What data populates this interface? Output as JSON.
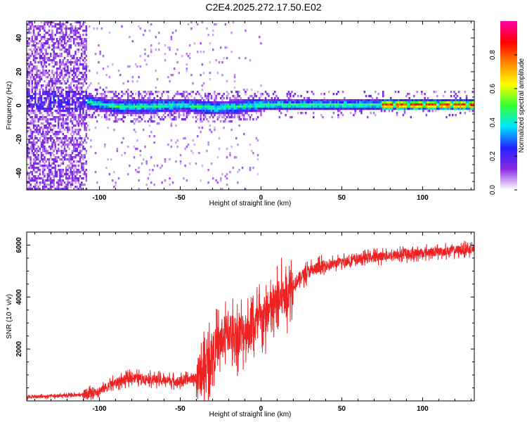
{
  "title": "C2E4.2025.272.17.50.E02",
  "chart_data": [
    {
      "type": "heatmap",
      "xlabel": "Height of straight line (km)",
      "ylabel": "Frequency (Hz)",
      "xlim": [
        -145,
        132
      ],
      "ylim": [
        -50,
        50
      ],
      "x_ticks": [
        -100,
        -50,
        0,
        50,
        100
      ],
      "x_tick_labels": [
        "-100",
        "-50",
        "0",
        "50",
        "100"
      ],
      "y_ticks": [
        -40,
        -20,
        0,
        20,
        40
      ],
      "y_tick_labels": [
        "-40",
        "-20",
        "0",
        "20",
        "40"
      ],
      "colorbar": {
        "label": "Normalized spectral amplitude",
        "range": [
          0,
          1
        ],
        "ticks": [
          0.0,
          0.2,
          0.4,
          0.6,
          0.8
        ],
        "tick_labels": [
          "0.0",
          "0.2",
          "0.4",
          "0.6",
          "0.8"
        ],
        "colors": [
          "#ffffff",
          "#8a2be2",
          "#2222ff",
          "#00e5ff",
          "#33ff33",
          "#ffff00",
          "#ff8800",
          "#ff0000",
          "#ff00aa"
        ]
      },
      "band_center_hz": [
        {
          "x": -110,
          "f": 3
        },
        {
          "x": -90,
          "f": 0
        },
        {
          "x": -70,
          "f": 0
        },
        {
          "x": -50,
          "f": 1
        },
        {
          "x": -30,
          "f": -1
        },
        {
          "x": -15,
          "f": 0
        },
        {
          "x": 0,
          "f": 1
        },
        {
          "x": 50,
          "f": 1
        },
        {
          "x": 100,
          "f": 1
        },
        {
          "x": 130,
          "f": 1
        }
      ]
    },
    {
      "type": "line",
      "xlabel": "Height of straight line (km)",
      "ylabel": "SNR (10 * v/v)",
      "xlim": [
        -145,
        132
      ],
      "ylim": [
        0,
        6500
      ],
      "x_ticks": [
        -100,
        -50,
        0,
        50,
        100
      ],
      "x_tick_labels": [
        "-100",
        "-50",
        "0",
        "50",
        "100"
      ],
      "y_ticks": [
        2000,
        4000,
        6000
      ],
      "y_tick_labels": [
        "2000",
        "4000",
        "6000"
      ],
      "color": "#ee2222",
      "series": [
        {
          "x": [
            -145,
            -120,
            -110,
            -100,
            -90,
            -80,
            -70,
            -60,
            -50,
            -40,
            -35,
            -30,
            -25,
            -20,
            -15,
            -10,
            -5,
            0,
            5,
            10,
            15,
            20,
            25,
            30,
            40,
            50,
            60,
            70,
            80,
            90,
            100,
            110,
            120,
            132
          ],
          "values": [
            150,
            200,
            250,
            400,
            700,
            900,
            850,
            800,
            750,
            900,
            1200,
            1800,
            2300,
            2700,
            2500,
            2700,
            2900,
            3100,
            3400,
            3800,
            4100,
            4500,
            4800,
            5000,
            5200,
            5350,
            5450,
            5550,
            5600,
            5650,
            5700,
            5750,
            5800,
            5850
          ]
        }
      ]
    }
  ]
}
